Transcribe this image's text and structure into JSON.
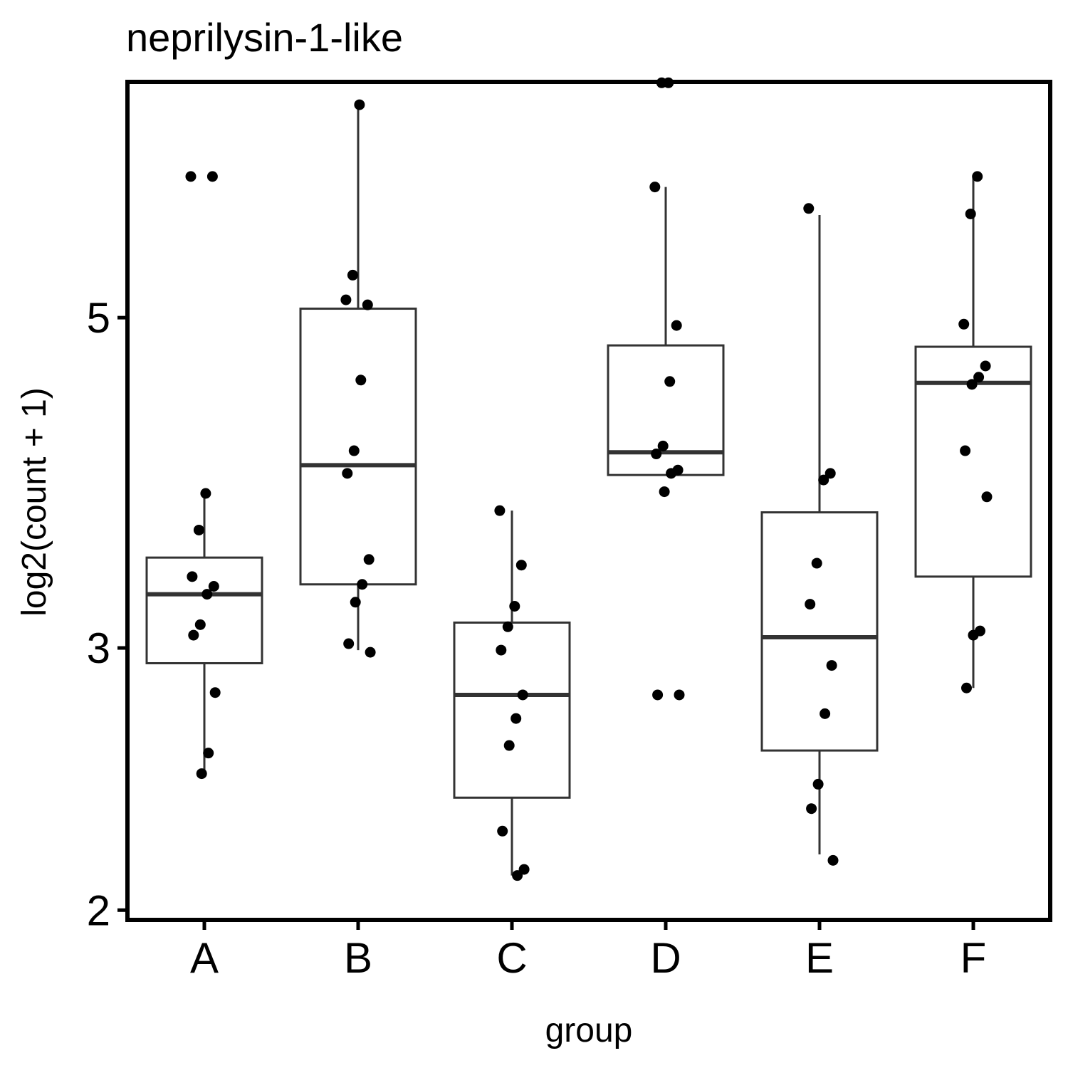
{
  "chart_data": {
    "type": "box",
    "title": "neprilysin-1-like",
    "xlabel": "group",
    "ylabel": "log2(count + 1)",
    "y_scale": "log",
    "ylim": [
      1.97,
      7.2
    ],
    "yticks": [
      2,
      3,
      5
    ],
    "categories": [
      "A",
      "B",
      "C",
      "D",
      "E",
      "F"
    ],
    "grid": false,
    "boxes": [
      {
        "name": "A",
        "q1": 2.93,
        "median": 3.26,
        "q3": 3.45,
        "whisker_low": 2.47,
        "whisker_high": 3.8
      },
      {
        "name": "B",
        "q1": 3.31,
        "median": 3.98,
        "q3": 5.07,
        "whisker_low": 2.99,
        "whisker_high": 6.93
      },
      {
        "name": "C",
        "q1": 2.38,
        "median": 2.79,
        "q3": 3.12,
        "whisker_low": 2.11,
        "whisker_high": 3.71
      },
      {
        "name": "D",
        "q1": 3.92,
        "median": 4.06,
        "q3": 4.79,
        "whisker_low": 3.92,
        "whisker_high": 6.12
      },
      {
        "name": "E",
        "q1": 2.56,
        "median": 3.05,
        "q3": 3.7,
        "whisker_low": 2.18,
        "whisker_high": 5.86
      },
      {
        "name": "F",
        "q1": 3.35,
        "median": 4.52,
        "q3": 4.78,
        "whisker_low": 2.82,
        "whisker_high": 6.22
      }
    ],
    "points": [
      {
        "group": "A",
        "values": [
          6.22,
          6.22,
          3.81,
          3.6,
          3.35,
          3.3,
          3.26,
          3.11,
          3.06,
          2.8,
          2.55,
          2.47
        ]
      },
      {
        "group": "B",
        "values": [
          6.95,
          5.34,
          5.14,
          5.1,
          4.54,
          4.07,
          3.93,
          3.44,
          3.31,
          3.22,
          3.02,
          2.98
        ]
      },
      {
        "group": "C",
        "values": [
          3.71,
          3.41,
          3.2,
          3.1,
          2.99,
          2.79,
          2.69,
          2.58,
          2.26,
          2.13,
          2.11
        ]
      },
      {
        "group": "D",
        "values": [
          7.19,
          7.19,
          6.12,
          4.94,
          4.53,
          4.1,
          4.05,
          3.95,
          3.93,
          3.82,
          2.79,
          2.79
        ]
      },
      {
        "group": "E",
        "values": [
          5.92,
          3.93,
          3.89,
          3.42,
          3.21,
          2.92,
          2.71,
          2.43,
          2.34,
          2.16
        ]
      },
      {
        "group": "F",
        "values": [
          6.22,
          5.87,
          4.95,
          4.64,
          4.56,
          4.51,
          4.07,
          3.79,
          3.08,
          3.06,
          2.82
        ]
      }
    ],
    "colors": {
      "box_stroke": "#333333",
      "point": "#000000",
      "axis": "#000000"
    }
  }
}
